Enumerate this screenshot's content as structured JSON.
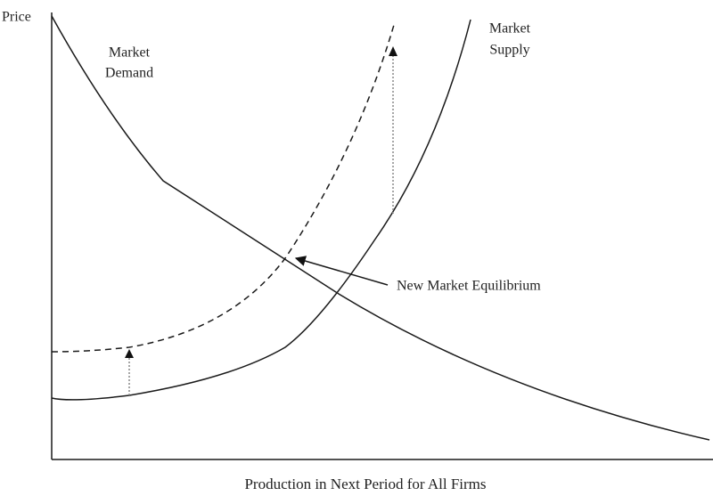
{
  "axes": {
    "y_label": "Price",
    "x_label": "Production in Next Period for All Firms"
  },
  "curves": {
    "demand": {
      "label_lines": [
        "Market",
        "Demand"
      ]
    },
    "supply": {
      "label_lines": [
        "Market",
        "Supply"
      ]
    }
  },
  "annotation": "New Market Equilibrium"
}
